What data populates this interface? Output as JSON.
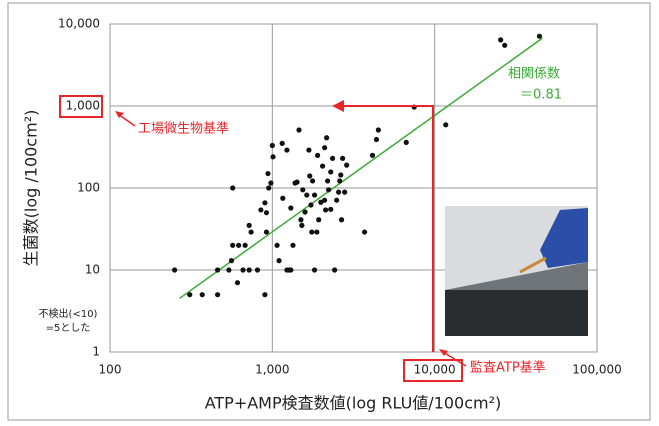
{
  "chart_data": {
    "type": "scatter",
    "x_label": "ATP+AMP検査数値(log RLU値/100cm²)",
    "y_label": "生菌数(log /100cm²)",
    "xscale": "log",
    "yscale": "log",
    "xlim": [
      100,
      100000
    ],
    "ylim": [
      1,
      10000
    ],
    "xticks": [
      100,
      {
        "value": 1000,
        "label": "1,000"
      },
      {
        "value": 10000,
        "label": "10,000"
      },
      {
        "value": 100000,
        "label": "100,000"
      }
    ],
    "yticks": [
      1,
      10,
      100,
      {
        "value": 1000,
        "label": "1,000"
      },
      {
        "value": 10000,
        "label": "10,000"
      }
    ],
    "grid": true,
    "color": "#111111",
    "x": [
      250,
      310,
      370,
      460,
      460,
      540,
      560,
      570,
      570,
      610,
      620,
      660,
      680,
      720,
      720,
      740,
      810,
      850,
      900,
      900,
      920,
      920,
      940,
      950,
      980,
      1000,
      1010,
      1070,
      1100,
      1150,
      1160,
      1230,
      1230,
      1270,
      1300,
      1300,
      1340,
      1380,
      1420,
      1460,
      1500,
      1520,
      1540,
      1590,
      1630,
      1680,
      1700,
      1730,
      1750,
      1770,
      1820,
      1820,
      1880,
      1900,
      1930,
      1990,
      2040,
      2100,
      2100,
      2130,
      2160,
      2190,
      2220,
      2290,
      2290,
      2350,
      2420,
      2490,
      2560,
      2600,
      2640,
      2670,
      2710,
      2790,
      2870,
      3700,
      4140,
      4380,
      4500,
      6680,
      7480,
      11700,
      25500,
      27000,
      44200
    ],
    "y": [
      10,
      5,
      5,
      5,
      10,
      10,
      13,
      20,
      100,
      7,
      20,
      10,
      20,
      35,
      10,
      29,
      10,
      54,
      5,
      66,
      50,
      29,
      150,
      100,
      115,
      330,
      240,
      20,
      13,
      350,
      75,
      290,
      10,
      10,
      10,
      57,
      20,
      115,
      118,
      510,
      41,
      35,
      95,
      51,
      82,
      290,
      140,
      62,
      29,
      122,
      82,
      10,
      29,
      250,
      41,
      67,
      185,
      310,
      71,
      54,
      410,
      122,
      95,
      157,
      55,
      230,
      10,
      71,
      89,
      122,
      144,
      41,
      230,
      89,
      190,
      29,
      250,
      390,
      510,
      360,
      970,
      590,
      6400,
      5500,
      7100
    ],
    "trendline": {
      "x": [
        268,
        46000
      ],
      "y": [
        4.5,
        6700
      ],
      "color": "#3aaa35"
    },
    "annotations": {
      "correlation_label": "相関係数",
      "correlation_value": "＝0.81",
      "factory_standard": "工場微生物基準",
      "audit_standard": "監査ATP基準",
      "not_detected": [
        "不検出(<10)",
        "=5とした"
      ]
    }
  }
}
